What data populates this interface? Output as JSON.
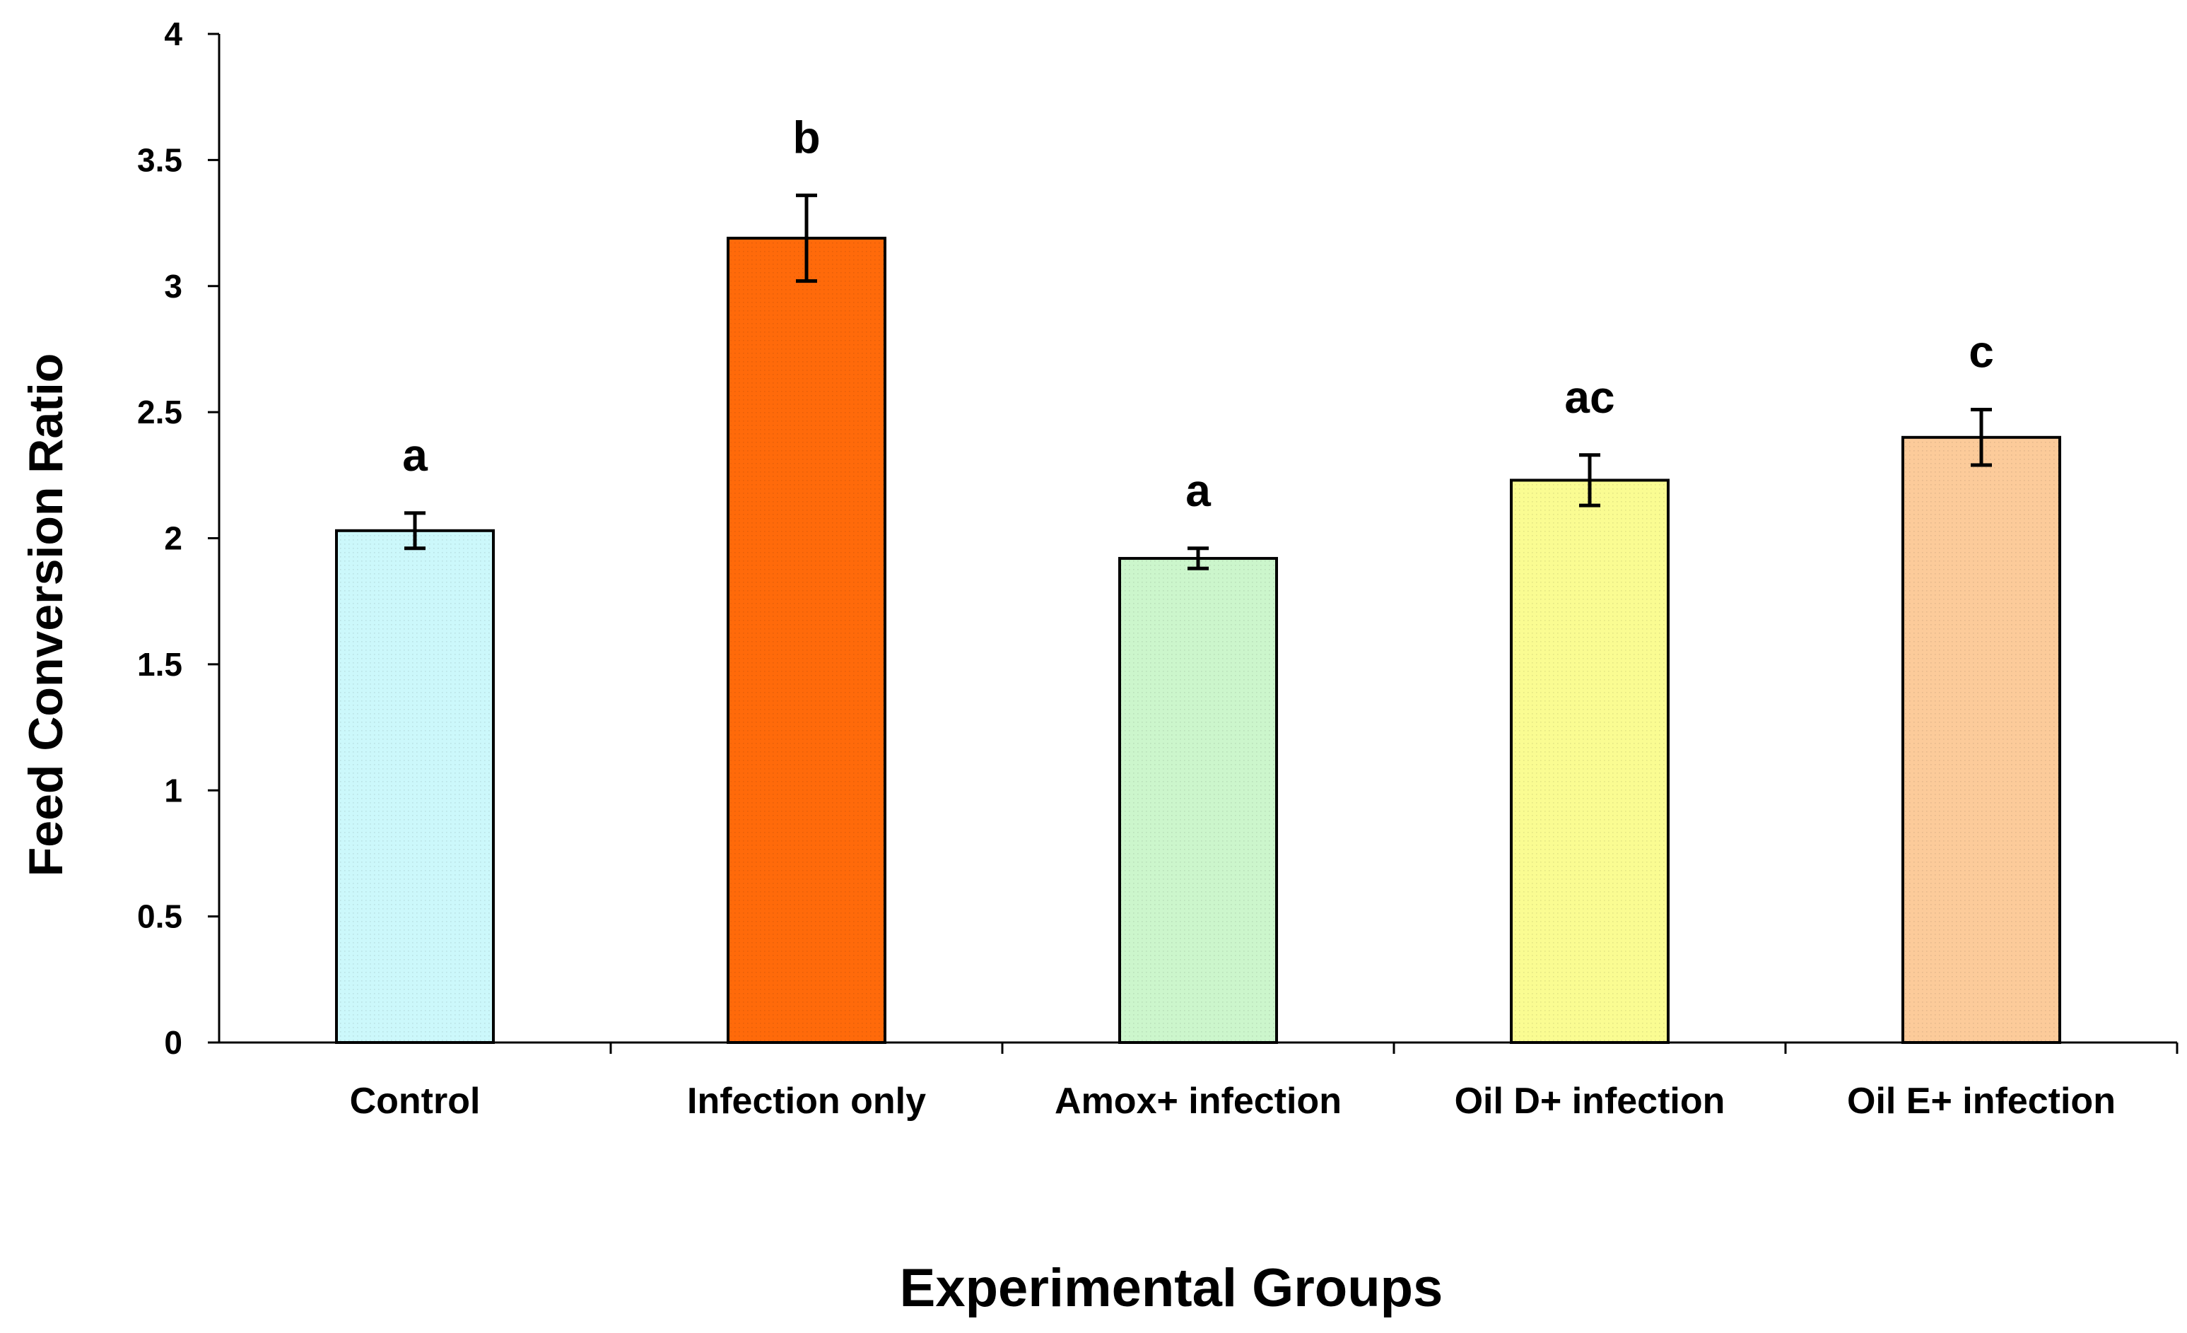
{
  "chart_data": {
    "type": "bar",
    "title": "",
    "xlabel": "Experimental Groups",
    "ylabel": "Feed Conversion Ratio",
    "ylim": [
      0,
      4
    ],
    "yticks": [
      "0",
      "0.5",
      "1",
      "1.5",
      "2",
      "2.5",
      "3",
      "3.5",
      "4"
    ],
    "categories": [
      "Control",
      "Infection only",
      "Amox+ infection",
      "Oil D+ infection",
      "Oil E+ infection"
    ],
    "values": [
      2.03,
      3.19,
      1.92,
      2.23,
      2.4
    ],
    "errors": [
      0.07,
      0.17,
      0.04,
      0.1,
      0.11
    ],
    "significance": [
      "a",
      "b",
      "a",
      "ac",
      "c"
    ],
    "colors": [
      "#ccf8fb",
      "#ff6a0a",
      "#ccf6cc",
      "#fafc92",
      "#fccb9a"
    ],
    "grid": false,
    "legend": "none"
  }
}
